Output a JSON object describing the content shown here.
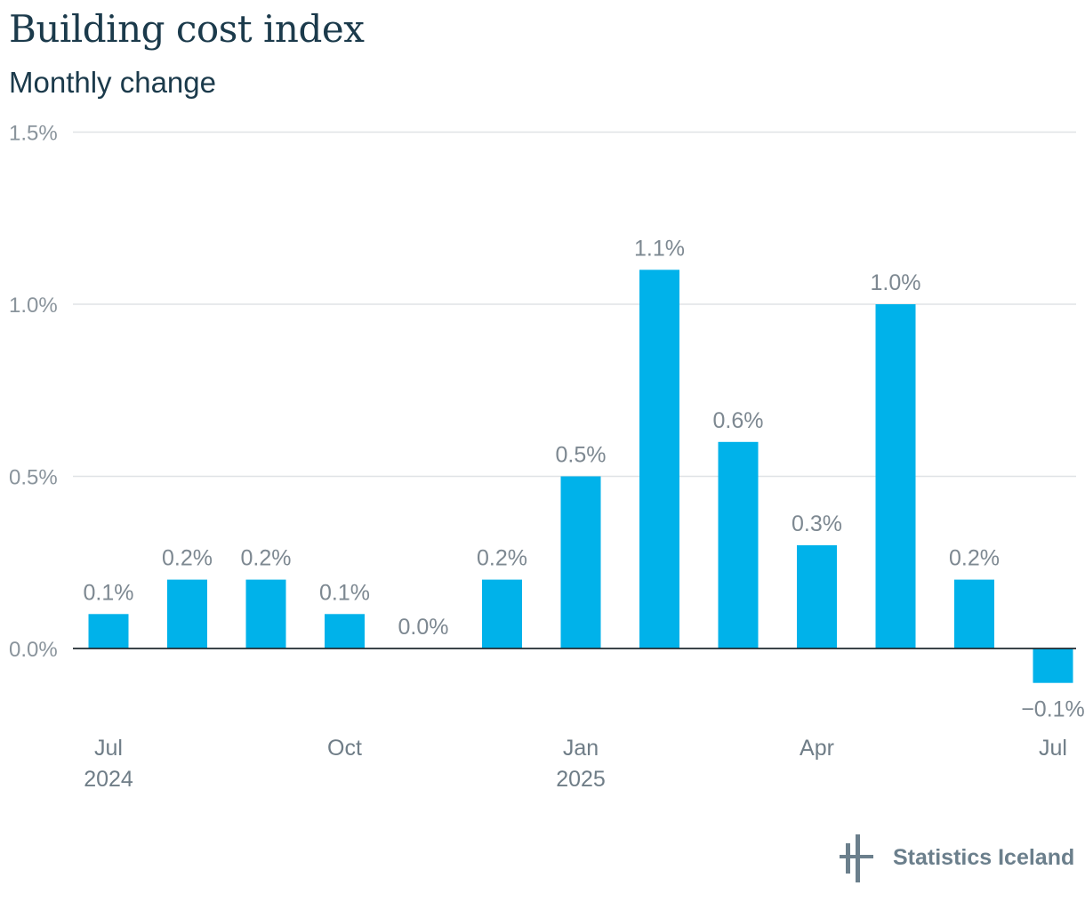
{
  "title": "Building cost index",
  "subtitle": "Monthly change",
  "colors": {
    "bar": "#00b2ea",
    "grid": "#e0e3e6",
    "zero_line": "#1f2a30",
    "title": "#1b3a4b"
  },
  "brand": {
    "name": "Statistics Iceland",
    "icon": "statistics-iceland-logo-icon"
  },
  "chart_data": {
    "type": "bar",
    "title": "Building cost index",
    "subtitle": "Monthly change",
    "categories": [
      "2024-07",
      "2024-08",
      "2024-09",
      "2024-10",
      "2024-11",
      "2024-12",
      "2025-01",
      "2025-02",
      "2025-03",
      "2025-04",
      "2025-05",
      "2025-06",
      "2025-07"
    ],
    "values": [
      0.1,
      0.2,
      0.2,
      0.1,
      0.0,
      0.2,
      0.5,
      1.1,
      0.6,
      0.3,
      1.0,
      0.2,
      -0.1
    ],
    "data_labels": [
      "0.1%",
      "0.2%",
      "0.2%",
      "0.1%",
      "0.0%",
      "0.2%",
      "0.5%",
      "1.1%",
      "0.6%",
      "0.3%",
      "1.0%",
      "0.2%",
      "−0.1%"
    ],
    "ylim": [
      -0.2,
      1.5
    ],
    "yticks": [
      0.0,
      0.5,
      1.0,
      1.5
    ],
    "ytick_labels": [
      "0.0%",
      "0.5%",
      "1.0%",
      "1.5%"
    ],
    "xtick_labels": [
      {
        "index": 0,
        "lines": [
          "Jul",
          "2024"
        ]
      },
      {
        "index": 3,
        "lines": [
          "Oct"
        ]
      },
      {
        "index": 6,
        "lines": [
          "Jan",
          "2025"
        ]
      },
      {
        "index": 9,
        "lines": [
          "Apr"
        ]
      },
      {
        "index": 12,
        "lines": [
          "Jul"
        ]
      }
    ],
    "grid": true,
    "legend": "none"
  }
}
